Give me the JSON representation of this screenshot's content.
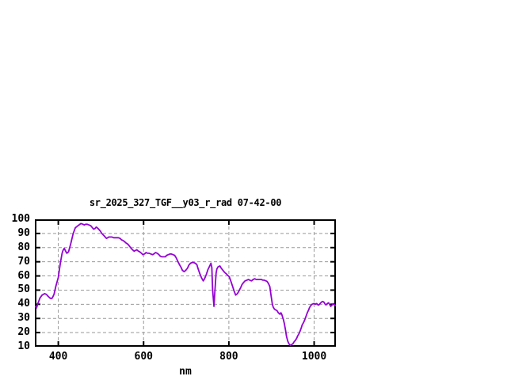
{
  "window": {
    "background": "#ffffff"
  },
  "chart_data": {
    "type": "line",
    "title": "sr_2025_327_TGF__y03_r_rad 07-42-00",
    "xlabel": "nm",
    "ylabel": "",
    "xlim": [
      345,
      1051
    ],
    "ylim": [
      10,
      100
    ],
    "xticks": [
      400,
      600,
      800,
      1000
    ],
    "yticks": [
      10,
      20,
      30,
      40,
      50,
      60,
      70,
      80,
      90,
      100
    ],
    "grid": true,
    "legend": "none",
    "line_color": "#9400d3",
    "grid_color": "#999999",
    "frame_color": "#000000",
    "points": [
      [
        346,
        38.5
      ],
      [
        349,
        37.5
      ],
      [
        351,
        39.5
      ],
      [
        354,
        42
      ],
      [
        357,
        44.5
      ],
      [
        362,
        46.5
      ],
      [
        368,
        47.5
      ],
      [
        372,
        47
      ],
      [
        375,
        46
      ],
      [
        380,
        44.5
      ],
      [
        383,
        44
      ],
      [
        386,
        44.5
      ],
      [
        390,
        47
      ],
      [
        394,
        52.5
      ],
      [
        400,
        59
      ],
      [
        405,
        69.5
      ],
      [
        409,
        76
      ],
      [
        411,
        78
      ],
      [
        414,
        79.5
      ],
      [
        418,
        77
      ],
      [
        420,
        76
      ],
      [
        424,
        77
      ],
      [
        429,
        82.5
      ],
      [
        435,
        90
      ],
      [
        440,
        94
      ],
      [
        446,
        95.5
      ],
      [
        453,
        97
      ],
      [
        458,
        96.5
      ],
      [
        461,
        96
      ],
      [
        464,
        96.5
      ],
      [
        468,
        96.5
      ],
      [
        472,
        96
      ],
      [
        476,
        95.5
      ],
      [
        480,
        94
      ],
      [
        483,
        93
      ],
      [
        486,
        93.5
      ],
      [
        489,
        94.5
      ],
      [
        493,
        93.5
      ],
      [
        496,
        92.5
      ],
      [
        499,
        91.5
      ],
      [
        502,
        90
      ],
      [
        507,
        88.5
      ],
      [
        510,
        87.5
      ],
      [
        513,
        86.5
      ],
      [
        516,
        87
      ],
      [
        518,
        87.5
      ],
      [
        522,
        87.5
      ],
      [
        526,
        87.5
      ],
      [
        530,
        87
      ],
      [
        533,
        87
      ],
      [
        537,
        87
      ],
      [
        541,
        87
      ],
      [
        545,
        86.5
      ],
      [
        548,
        85.5
      ],
      [
        552,
        85
      ],
      [
        556,
        84
      ],
      [
        560,
        83
      ],
      [
        563,
        82.5
      ],
      [
        567,
        81
      ],
      [
        571,
        79.5
      ],
      [
        574,
        78.5
      ],
      [
        578,
        77.5
      ],
      [
        581,
        78
      ],
      [
        584,
        78.5
      ],
      [
        588,
        77.5
      ],
      [
        591,
        77
      ],
      [
        595,
        76
      ],
      [
        598,
        75
      ],
      [
        602,
        75.5
      ],
      [
        606,
        76.5
      ],
      [
        609,
        76
      ],
      [
        613,
        76
      ],
      [
        617,
        75.5
      ],
      [
        621,
        75
      ],
      [
        624,
        75.5
      ],
      [
        628,
        76.5
      ],
      [
        632,
        76
      ],
      [
        636,
        75
      ],
      [
        639,
        74
      ],
      [
        643,
        73.5
      ],
      [
        647,
        73.5
      ],
      [
        651,
        73.5
      ],
      [
        654,
        74.5
      ],
      [
        658,
        75
      ],
      [
        662,
        75.5
      ],
      [
        665,
        75.5
      ],
      [
        669,
        75
      ],
      [
        673,
        74.5
      ],
      [
        676,
        73
      ],
      [
        680,
        70.5
      ],
      [
        684,
        68
      ],
      [
        688,
        66
      ],
      [
        691,
        64
      ],
      [
        695,
        63
      ],
      [
        699,
        64
      ],
      [
        703,
        65.5
      ],
      [
        706,
        67.5
      ],
      [
        710,
        69
      ],
      [
        714,
        69.5
      ],
      [
        717,
        69.5
      ],
      [
        721,
        69
      ],
      [
        725,
        68
      ],
      [
        728,
        65
      ],
      [
        732,
        61.5
      ],
      [
        736,
        58.5
      ],
      [
        740,
        56.5
      ],
      [
        743,
        58
      ],
      [
        747,
        61
      ],
      [
        751,
        64.5
      ],
      [
        755,
        67
      ],
      [
        758,
        69
      ],
      [
        760,
        66
      ],
      [
        762,
        50
      ],
      [
        765,
        38.5
      ],
      [
        767,
        48
      ],
      [
        770,
        62
      ],
      [
        772,
        65
      ],
      [
        775,
        66.5
      ],
      [
        779,
        67
      ],
      [
        782,
        65.5
      ],
      [
        786,
        64
      ],
      [
        790,
        62.5
      ],
      [
        794,
        61.5
      ],
      [
        797,
        60.5
      ],
      [
        801,
        59.5
      ],
      [
        805,
        56
      ],
      [
        809,
        52.5
      ],
      [
        812,
        49.5
      ],
      [
        816,
        46.5
      ],
      [
        820,
        47.5
      ],
      [
        824,
        49.5
      ],
      [
        828,
        52
      ],
      [
        831,
        54
      ],
      [
        835,
        55.5
      ],
      [
        838,
        56.5
      ],
      [
        842,
        57
      ],
      [
        846,
        57.5
      ],
      [
        849,
        57
      ],
      [
        853,
        56.5
      ],
      [
        857,
        57.5
      ],
      [
        861,
        58
      ],
      [
        864,
        57.5
      ],
      [
        868,
        57.5
      ],
      [
        872,
        57.5
      ],
      [
        876,
        57.5
      ],
      [
        880,
        57
      ],
      [
        883,
        57
      ],
      [
        887,
        56.5
      ],
      [
        890,
        56
      ],
      [
        893,
        54.5
      ],
      [
        896,
        52.5
      ],
      [
        899,
        46
      ],
      [
        902,
        40
      ],
      [
        904,
        38
      ],
      [
        907,
        36.5
      ],
      [
        910,
        36
      ],
      [
        913,
        35.5
      ],
      [
        916,
        34
      ],
      [
        918,
        33.5
      ],
      [
        920,
        33
      ],
      [
        922,
        34
      ],
      [
        924,
        33
      ],
      [
        926,
        31
      ],
      [
        928,
        29
      ],
      [
        930,
        26.5
      ],
      [
        933,
        21.5
      ],
      [
        935,
        17.5
      ],
      [
        938,
        14
      ],
      [
        941,
        12
      ],
      [
        944,
        11
      ],
      [
        947,
        11.5
      ],
      [
        950,
        12
      ],
      [
        953,
        13.5
      ],
      [
        956,
        14.5
      ],
      [
        959,
        16
      ],
      [
        961,
        17.5
      ],
      [
        964,
        19
      ],
      [
        967,
        21
      ],
      [
        970,
        23.5
      ],
      [
        972,
        25.5
      ],
      [
        975,
        27
      ],
      [
        978,
        29
      ],
      [
        981,
        31.5
      ],
      [
        984,
        34
      ],
      [
        987,
        36
      ],
      [
        989,
        37.5
      ],
      [
        992,
        39
      ],
      [
        995,
        40
      ],
      [
        1000,
        40.5
      ],
      [
        1003,
        40
      ],
      [
        1006,
        40.5
      ],
      [
        1009,
        39.5
      ],
      [
        1011,
        39.5
      ],
      [
        1014,
        40.5
      ],
      [
        1017,
        41.5
      ],
      [
        1020,
        42
      ],
      [
        1023,
        41.5
      ],
      [
        1026,
        40
      ],
      [
        1028,
        39.5
      ],
      [
        1031,
        40.5
      ],
      [
        1034,
        41
      ],
      [
        1037,
        39.5
      ],
      [
        1039,
        38.5
      ],
      [
        1042,
        39.5
      ],
      [
        1045,
        40.5
      ],
      [
        1048,
        39.5
      ],
      [
        1050,
        39
      ]
    ]
  }
}
